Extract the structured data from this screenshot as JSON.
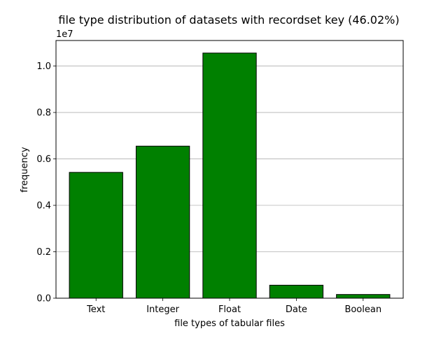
{
  "chart_data": {
    "type": "bar",
    "title": "file type distribution of datasets with recordset key (46.02%)",
    "xlabel": "file types of tabular files",
    "ylabel": "frequency",
    "y_offset_label": "1e7",
    "y_scale": 10000000,
    "categories": [
      "Text",
      "Integer",
      "Float",
      "Date",
      "Boolean"
    ],
    "values": [
      5420000,
      6550000,
      10560000,
      560000,
      160000
    ],
    "ylim": [
      0,
      11100000
    ],
    "yticks": [
      0,
      2000000,
      4000000,
      6000000,
      8000000,
      10000000
    ],
    "ytick_labels": [
      "0.0",
      "0.2",
      "0.4",
      "0.6",
      "0.8",
      "1.0"
    ],
    "grid": "y",
    "legend": "none",
    "bar_color": "#008000",
    "bar_edge_color": "#000000",
    "grid_color": "#b0b0b0"
  }
}
